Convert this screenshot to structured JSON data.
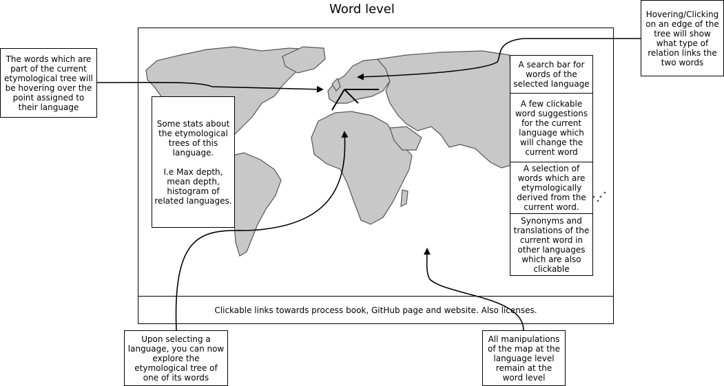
{
  "title": "Word level",
  "map": {
    "footer_text": "Clickable links towards process book, GitHub page and website. Also licenses."
  },
  "annotations": {
    "words_hover": "The words which are part of the current etymological tree will be hovering over the point assigned to their language",
    "edge_hover": "Hovering/Clicking on an edge of the tree will show what type of relation links the two words",
    "select_language": "Upon selecting a language, you can now explore the etymological tree of one of its words",
    "map_manipulations": "All manipulations of the map at the language level remain at the word level"
  },
  "panels": {
    "stats": "Some stats about the etymological trees of this language.\n\nI.e Max depth, mean depth, histogram of related languages.",
    "search": "A search bar for words of the selected language",
    "suggestions": "A few clickable word suggestions for the current language which will change the current word",
    "derived": "A selection of words which are etymologically derived from the current word.",
    "synonyms": "Synonyms and translations of the current word in other languages which are also clickable"
  }
}
